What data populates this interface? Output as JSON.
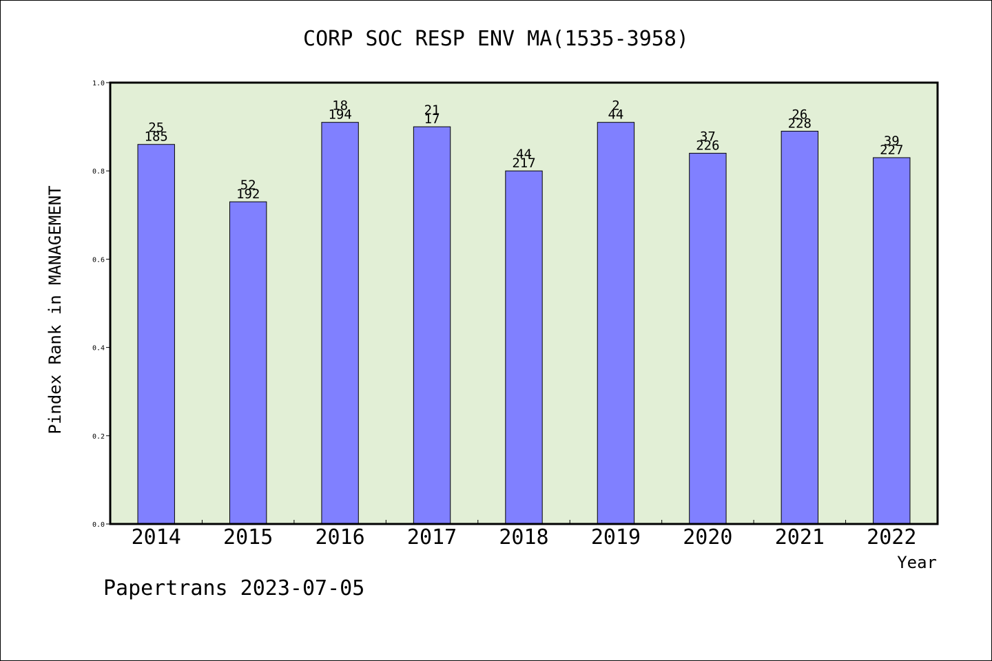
{
  "chart_data": {
    "type": "bar",
    "title": "CORP SOC RESP ENV MA(1535-3958)",
    "xlabel": "Year",
    "ylabel": "Pindex Rank in MANAGEMENT",
    "categories": [
      "2014",
      "2015",
      "2016",
      "2017",
      "2018",
      "2019",
      "2020",
      "2021",
      "2022"
    ],
    "values": [
      0.86,
      0.73,
      0.91,
      0.9,
      0.8,
      0.91,
      0.84,
      0.89,
      0.83
    ],
    "annotations_top": [
      "25",
      "52",
      "18",
      "21",
      "44",
      "2",
      "37",
      "26",
      "39"
    ],
    "annotations_bottom": [
      "185",
      "192",
      "194",
      "17",
      "217",
      "44",
      "226",
      "228",
      "227"
    ],
    "ylim": [
      0,
      1.0
    ],
    "yticks": [
      "0.0",
      "0.2",
      "0.4",
      "0.6",
      "0.8",
      "1.0"
    ],
    "grid": false,
    "colors": {
      "plot_background": "#e2efd6",
      "bar_fill": "#8080ff",
      "bar_stroke": "#000000"
    }
  },
  "footer": "Papertrans 2023-07-05"
}
